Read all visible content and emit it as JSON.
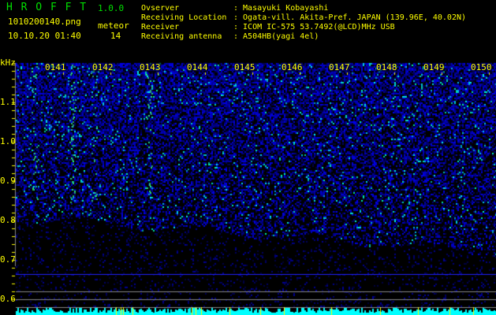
{
  "header": {
    "app_title": "H R O F F T",
    "version": "1.0.0",
    "filename": "1010200140.png",
    "datetime": "10.10.20 01:40",
    "meteor_label": "meteor",
    "meteor_count": "14"
  },
  "info": [
    {
      "label": "Ovserver",
      "value": ": Masayuki Kobayashi"
    },
    {
      "label": "Receiving Location",
      "value": ": Ogata-vill. Akita-Pref. JAPAN (139.96E, 40.02N)"
    },
    {
      "label": "Receiver",
      "value": ": ICOM IC-575 53.7492(@LCD)MHz USB"
    },
    {
      "label": "Receiving antenna",
      "value": ": A504HB(yagi 4el)"
    }
  ],
  "spectrogram": {
    "y_unit": "kHz",
    "y_ticks": [
      "1.1",
      "1.0",
      "0.9",
      "0.8",
      "0.7",
      "0.6"
    ],
    "time_labels": [
      "0141",
      "0142",
      "0143",
      "0144",
      "0145",
      "0146",
      "0147",
      "0148",
      "0149",
      "0150"
    ],
    "colors": {
      "text": "#ffff00",
      "title": "#00e000",
      "signal": "#0000ff",
      "histogram": "#00ffff"
    }
  }
}
